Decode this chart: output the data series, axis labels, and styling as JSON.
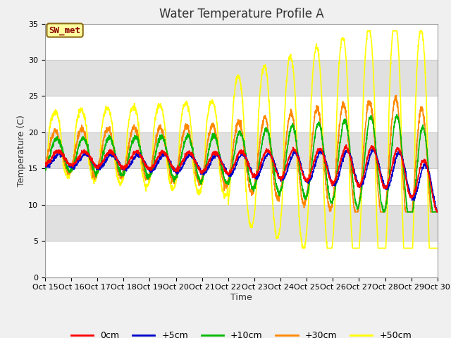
{
  "title": "Water Temperature Profile A",
  "xlabel": "Time",
  "ylabel": "Temperature (C)",
  "ylim": [
    0,
    35
  ],
  "yticks": [
    0,
    5,
    10,
    15,
    20,
    25,
    30,
    35
  ],
  "xtick_labels": [
    "Oct 15",
    "Oct 16",
    "Oct 17",
    "Oct 18",
    "Oct 19",
    "Oct 20",
    "Oct 21",
    "Oct 22",
    "Oct 23",
    "Oct 24",
    "Oct 25",
    "Oct 26",
    "Oct 27",
    "Oct 28",
    "Oct 29",
    "Oct 30"
  ],
  "legend_label_box": "SW_met",
  "series_colors": {
    "0cm": "#ff0000",
    "+5cm": "#0000cc",
    "+10cm": "#00bb00",
    "+30cm": "#ff8800",
    "+50cm": "#ffff00"
  },
  "series_names": [
    "0cm",
    "+5cm",
    "+10cm",
    "+30cm",
    "+50cm"
  ],
  "plot_bg_color": "#ffffff",
  "fig_bg_color": "#f0f0f0",
  "band_colors": [
    "#ffffff",
    "#e0e0e0"
  ],
  "title_fontsize": 12,
  "axis_label_fontsize": 9,
  "tick_fontsize": 8,
  "linewidth": 1.2
}
